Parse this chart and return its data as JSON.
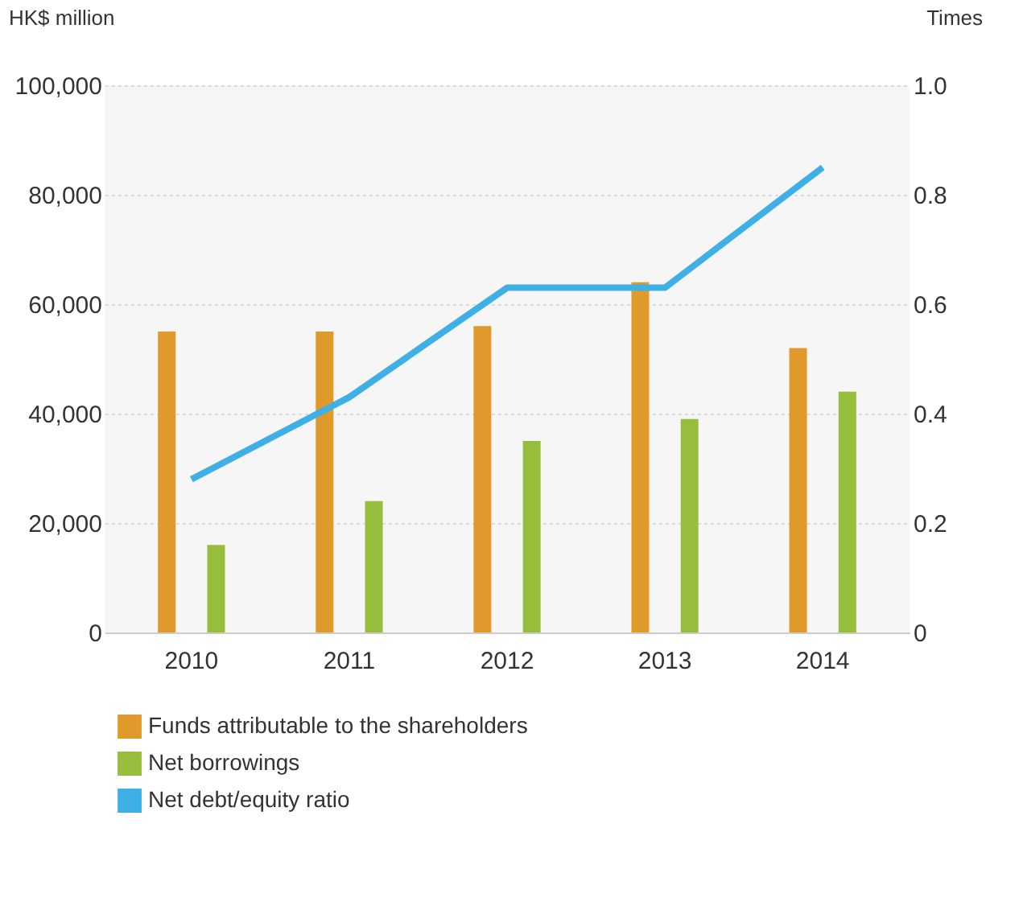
{
  "chart_data": {
    "type": "bar",
    "ylabel": "HK$ million",
    "y2label": "Times",
    "categories": [
      "2010",
      "2011",
      "2012",
      "2013",
      "2014"
    ],
    "series": [
      {
        "name": "Funds attributable to the shareholders",
        "color": "#e09a2c",
        "values": [
          55000,
          55000,
          56000,
          64000,
          52000
        ]
      },
      {
        "name": "Net borrowings",
        "color": "#97bd3d",
        "values": [
          16000,
          24000,
          35000,
          39000,
          44000
        ]
      },
      {
        "name": "Net debt/equity ratio",
        "color": "#3fb0e6",
        "type": "line",
        "axis": "y2",
        "values": [
          0.28,
          0.43,
          0.63,
          0.63,
          0.85
        ]
      }
    ],
    "ylim": [
      0,
      100000
    ],
    "yticks": [
      0,
      {
        "value": 20000,
        "label": "20,000"
      },
      {
        "value": 40000,
        "label": "40,000"
      },
      {
        "value": 60000,
        "label": "60,000"
      },
      {
        "value": 80000,
        "label": "80,000"
      },
      {
        "value": 100000,
        "label": "100,000"
      }
    ],
    "y2lim": [
      0,
      1
    ],
    "y2ticks": [
      {
        "value": 0,
        "label": "0"
      },
      {
        "value": 0.2,
        "label": "0.2"
      },
      {
        "value": 0.4,
        "label": "0.4"
      },
      {
        "value": 0.6,
        "label": "0.6"
      },
      {
        "value": 0.8,
        "label": "0.8"
      },
      {
        "value": 1,
        "label": "1.0"
      }
    ],
    "grid": "y",
    "legend": "bottom",
    "marker": "none",
    "line_style": "solid"
  }
}
